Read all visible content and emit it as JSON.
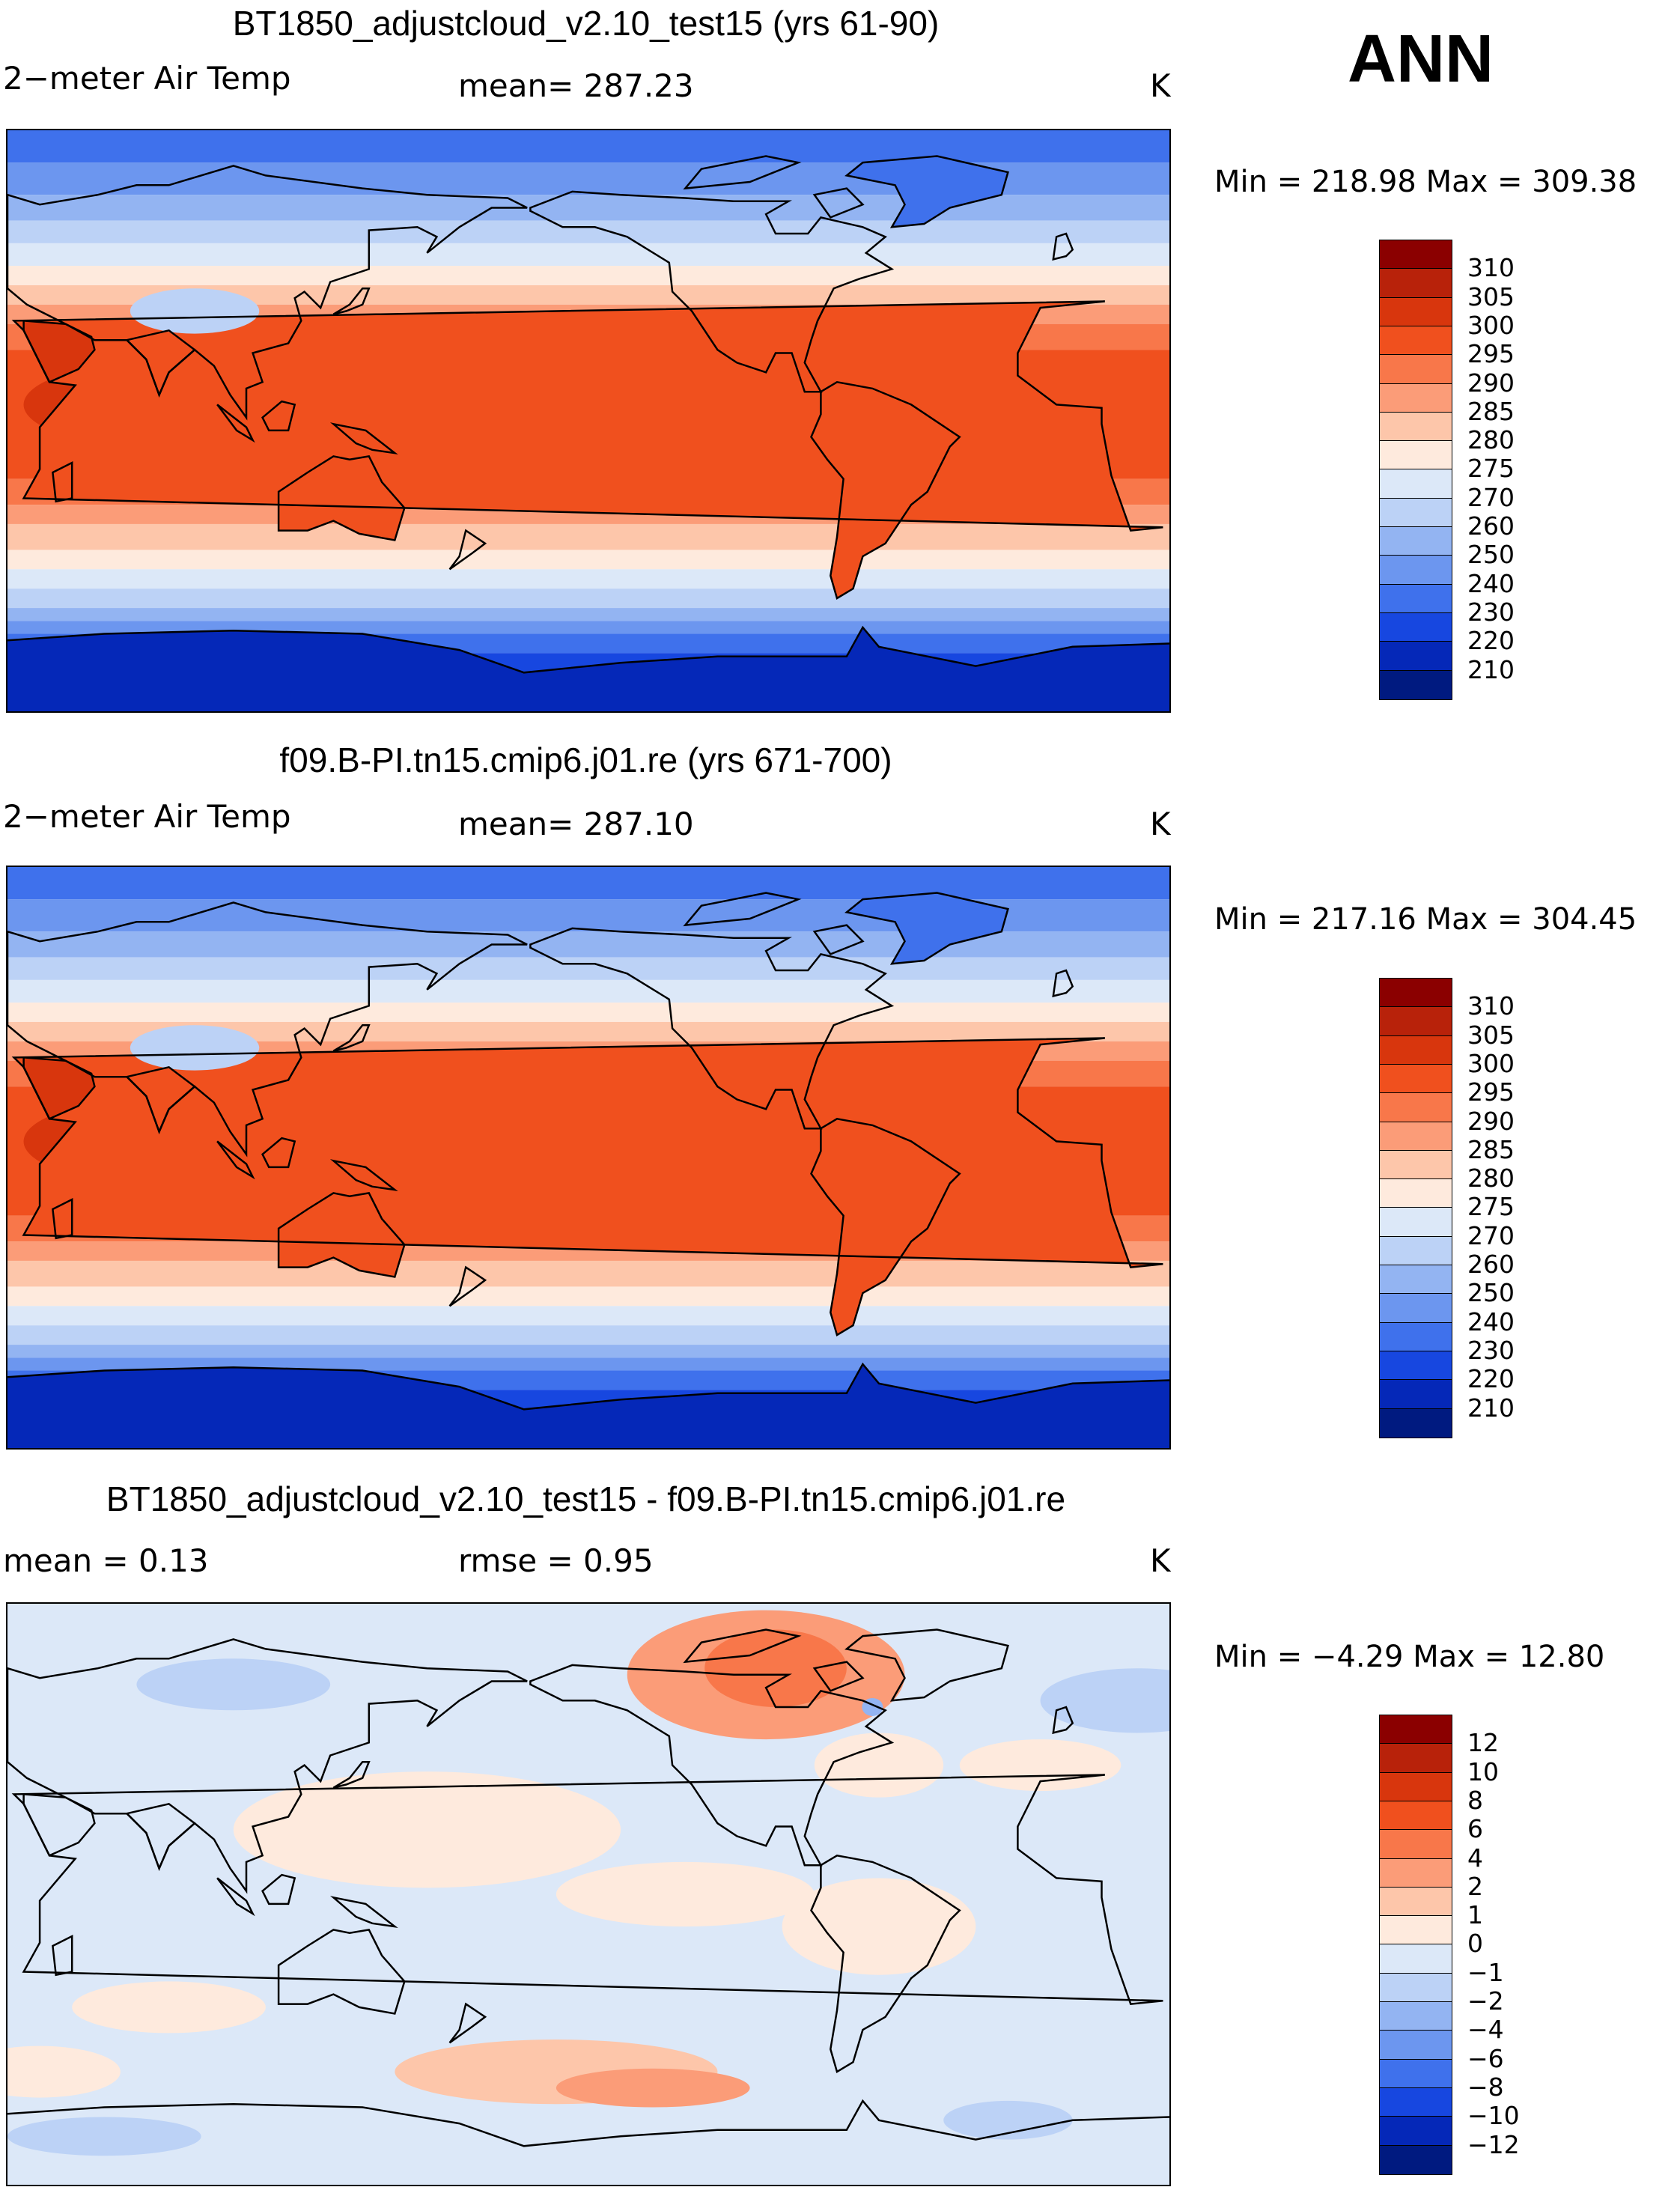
{
  "season_label": "ANN",
  "panels": [
    {
      "title": "BT1850_adjustcloud_v2.10_test15 (yrs 61-90)",
      "left_label": "2−meter Air Temp",
      "mid_label": "mean=  287.23",
      "units": "K",
      "min_max": "Min  =  218.98  Max  =  309.38",
      "colorbar": {
        "levels": [
          "310",
          "305",
          "300",
          "295",
          "290",
          "285",
          "280",
          "275",
          "270",
          "260",
          "250",
          "240",
          "230",
          "220",
          "210"
        ],
        "colors": [
          "#8b0000",
          "#b8220a",
          "#d8360d",
          "#f0501e",
          "#f8774a",
          "#fb9c78",
          "#fdc6aa",
          "#feeadd",
          "#dce8f8",
          "#bcd2f6",
          "#93b4f2",
          "#6c96ef",
          "#3f71ec",
          "#1747e0",
          "#0528b8",
          "#001a80"
        ]
      },
      "map_type": "abs",
      "mean_value": 287.23,
      "min": 218.98,
      "max": 309.38
    },
    {
      "title": "f09.B-PI.tn15.cmip6.j01.re (yrs 671-700)",
      "left_label": "2−meter Air Temp",
      "mid_label": "mean=  287.10",
      "units": "K",
      "min_max": "Min  =  217.16  Max  =  304.45",
      "colorbar": {
        "levels": [
          "310",
          "305",
          "300",
          "295",
          "290",
          "285",
          "280",
          "275",
          "270",
          "260",
          "250",
          "240",
          "230",
          "220",
          "210"
        ],
        "colors": [
          "#8b0000",
          "#b8220a",
          "#d8360d",
          "#f0501e",
          "#f8774a",
          "#fb9c78",
          "#fdc6aa",
          "#feeadd",
          "#dce8f8",
          "#bcd2f6",
          "#93b4f2",
          "#6c96ef",
          "#3f71ec",
          "#1747e0",
          "#0528b8",
          "#001a80"
        ]
      },
      "map_type": "abs",
      "mean_value": 287.1,
      "min": 217.16,
      "max": 304.45
    },
    {
      "title": "BT1850_adjustcloud_v2.10_test15 - f09.B-PI.tn15.cmip6.j01.re",
      "left_label": "mean =     0.13",
      "mid_label": "rmse =     0.95",
      "units": "K",
      "min_max": "Min  =   −4.29  Max  =    12.80",
      "colorbar": {
        "levels": [
          "12",
          "10",
          "8",
          "6",
          "4",
          "2",
          "1",
          "0",
          "−1",
          "−2",
          "−4",
          "−6",
          "−8",
          "−10",
          "−12"
        ],
        "colors": [
          "#8b0000",
          "#b8220a",
          "#d8360d",
          "#f0501e",
          "#f8774a",
          "#fb9c78",
          "#fdc6aa",
          "#feeadd",
          "#dce8f8",
          "#bcd2f6",
          "#93b4f2",
          "#6c96ef",
          "#3f71ec",
          "#1747e0",
          "#0528b8",
          "#001a80"
        ]
      },
      "map_type": "diff",
      "mean_value": 0.13,
      "rmse_value": 0.95,
      "min": -4.29,
      "max": 12.8
    }
  ]
}
